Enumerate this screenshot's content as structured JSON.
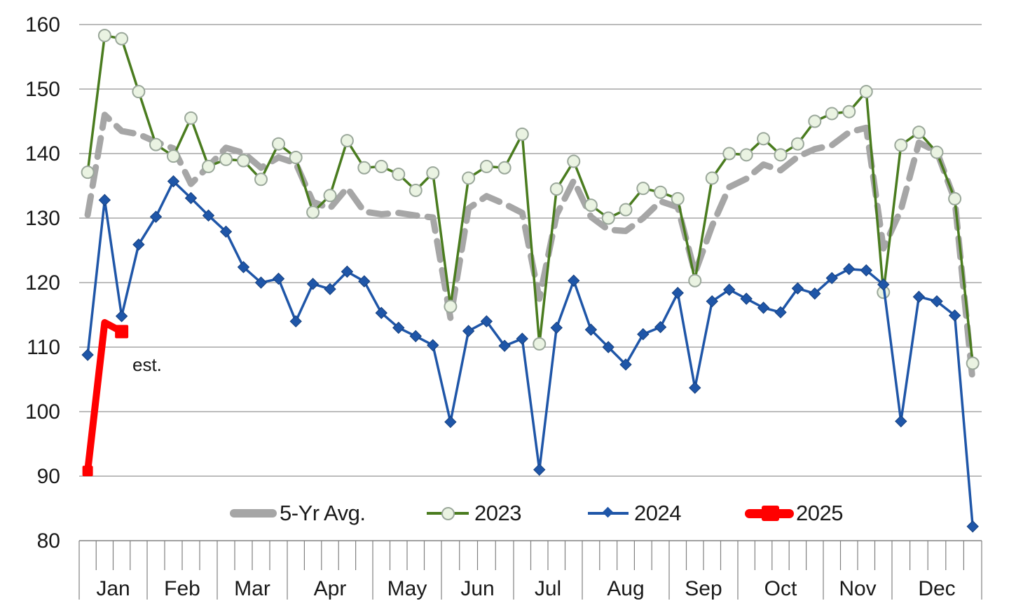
{
  "chart_data": {
    "type": "line",
    "title": "",
    "subtitle": "",
    "grid": "horizontal-on",
    "legend_position": "bottom-inside",
    "y_axis": {
      "min": 80,
      "max": 160,
      "step": 10,
      "tick_labels": [
        "160",
        "150",
        "140",
        "130",
        "120",
        "110",
        "100",
        "90",
        "80"
      ]
    },
    "x_axis": {
      "unit": "weekly",
      "months": [
        {
          "label": "Jan",
          "weeks": 4
        },
        {
          "label": "Feb",
          "weeks": 4
        },
        {
          "label": "Mar",
          "weeks": 4
        },
        {
          "label": "Apr",
          "weeks": 5
        },
        {
          "label": "May",
          "weeks": 4
        },
        {
          "label": "Jun",
          "weeks": 4
        },
        {
          "label": "Jul",
          "weeks": 4
        },
        {
          "label": "Aug",
          "weeks": 5
        },
        {
          "label": "Sep",
          "weeks": 4
        },
        {
          "label": "Oct",
          "weeks": 5
        },
        {
          "label": "Nov",
          "weeks": 4
        },
        {
          "label": "Dec",
          "weeks": 5
        }
      ]
    },
    "annotations": [
      {
        "text": "est.",
        "near_series": "2025"
      }
    ],
    "colors": {
      "grid": "#a6a6a6",
      "axis": "#808080",
      "text": "#1a1a1a",
      "avg_gray": "#a6a6a6",
      "green_2023": "#4a7c1f",
      "green_marker_fill": "#eaf3e2",
      "green_marker_stroke": "#9aa79a",
      "blue_2024": "#1f56a8",
      "red_2025": "#ff0000"
    },
    "series": [
      {
        "name": "5-Yr Avg.",
        "color": "#a6a6a6",
        "style": "thick-dashed",
        "marker": "none",
        "values": [
          130.5,
          146,
          143.5,
          143,
          141.8,
          140.8,
          135.3,
          138,
          140.9,
          140.1,
          137.8,
          139.4,
          138.5,
          132.5,
          131.5,
          134.7,
          131,
          130.6,
          130.8,
          130.4,
          130.1,
          114.5,
          131.5,
          133.4,
          132.2,
          130.8,
          117.5,
          130.5,
          135.8,
          130.2,
          128.2,
          128,
          130,
          132.6,
          131.7,
          121.5,
          128.8,
          134.8,
          136.1,
          138.3,
          137.4,
          139.5,
          140.7,
          141.3,
          143.3,
          144,
          125.3,
          131.3,
          141.7,
          140.3,
          132.8,
          104.7
        ]
      },
      {
        "name": "2023",
        "color": "#4a7c1f",
        "style": "solid",
        "marker": "circle",
        "values": [
          137.1,
          158.3,
          157.8,
          149.6,
          141.4,
          139.6,
          145.5,
          138,
          139.1,
          138.9,
          136,
          141.5,
          139.4,
          130.9,
          133.5,
          142,
          137.8,
          138,
          136.8,
          134.3,
          137,
          116.3,
          136.2,
          138,
          137.8,
          143,
          110.5,
          134.5,
          138.8,
          132,
          130,
          131.3,
          134.6,
          134,
          133,
          120.3,
          136.2,
          140,
          139.8,
          142.3,
          139.8,
          141.5,
          145,
          146.2,
          146.5,
          149.6,
          118.5,
          141.3,
          143.3,
          140.2,
          133,
          107.5
        ]
      },
      {
        "name": "2024",
        "color": "#1f56a8",
        "style": "solid",
        "marker": "diamond",
        "values": [
          108.8,
          132.8,
          114.8,
          125.9,
          130.2,
          135.7,
          133.1,
          130.4,
          127.9,
          122.4,
          120,
          120.6,
          114,
          119.8,
          119,
          121.7,
          120.2,
          115.3,
          113,
          111.7,
          110.3,
          98.4,
          112.5,
          114,
          110.2,
          111.3,
          91,
          113,
          120.3,
          112.7,
          110,
          107.3,
          112,
          113.1,
          118.4,
          103.7,
          117.1,
          118.9,
          117.5,
          116.1,
          115.4,
          119.1,
          118.3,
          120.7,
          122.1,
          121.9,
          119.7,
          98.5,
          117.8,
          117.1,
          114.9,
          82.2
        ]
      },
      {
        "name": "2025",
        "color": "#ff0000",
        "style": "thick",
        "marker": "square",
        "estimated": true,
        "values": [
          90.8,
          113.8,
          112.4
        ]
      }
    ]
  }
}
